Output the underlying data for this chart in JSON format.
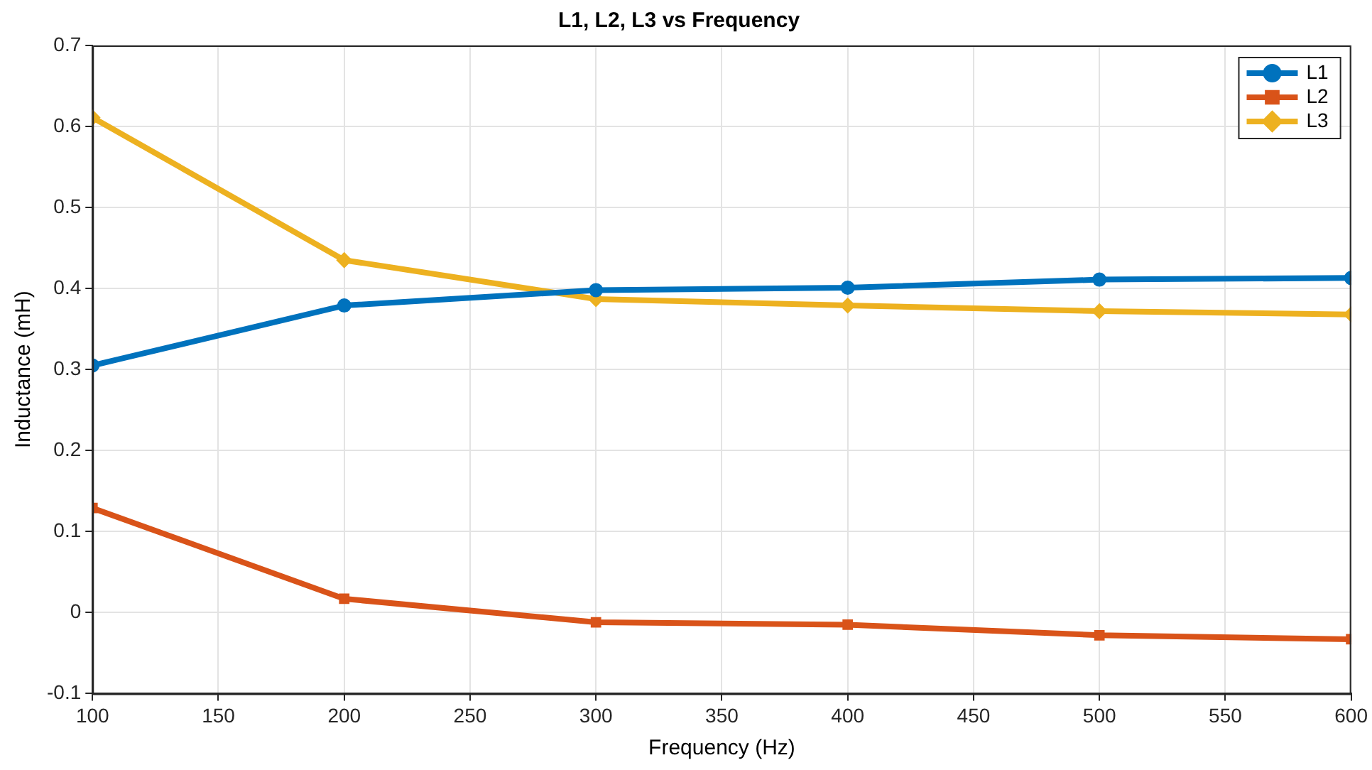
{
  "chart_data": {
    "type": "line",
    "title": "L1, L2, L3 vs Frequency",
    "xlabel": "Frequency (Hz)",
    "ylabel": "Inductance (mH)",
    "x": [
      100,
      200,
      300,
      400,
      500,
      600
    ],
    "series": [
      {
        "name": "L1",
        "color": "#0072bd",
        "marker": "circle",
        "values": [
          0.305,
          0.379,
          0.398,
          0.401,
          0.411,
          0.413
        ]
      },
      {
        "name": "L2",
        "color": "#d95319",
        "marker": "square",
        "values": [
          0.129,
          0.017,
          -0.012,
          -0.015,
          -0.028,
          -0.033
        ]
      },
      {
        "name": "L3",
        "color": "#edb120",
        "marker": "diamond",
        "values": [
          0.611,
          0.435,
          0.387,
          0.379,
          0.372,
          0.368
        ]
      }
    ],
    "xlim": [
      100,
      600
    ],
    "xticks": [
      100,
      150,
      200,
      250,
      300,
      350,
      400,
      450,
      500,
      550,
      600
    ],
    "ylim": [
      -0.1,
      0.7
    ],
    "yticks": [
      -0.1,
      0,
      0.1,
      0.2,
      0.3,
      0.4,
      0.5,
      0.6,
      0.7
    ],
    "grid": true,
    "legend": "top right",
    "line_style": "solid"
  }
}
